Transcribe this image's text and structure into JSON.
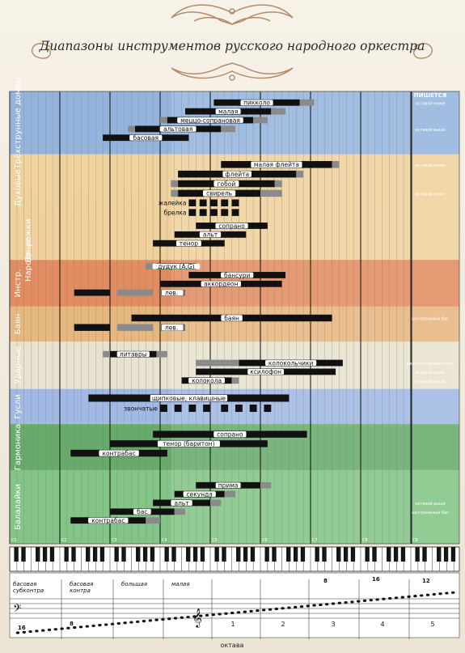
{
  "title": "Диапазоны инструментов русского народного оркестра",
  "header_right": "ПИШЕТСЯ",
  "octave_axis_label": "октава",
  "c_labels": [
    "C1",
    "C2",
    "C3",
    "C4",
    "C5",
    "C6",
    "C7",
    "C8",
    "C9"
  ],
  "octave_names": [
    "басовая субконтра",
    "басовая контра",
    "большая",
    "малая"
  ],
  "octave_numbers": [
    "1",
    "2",
    "3",
    "4",
    "5"
  ],
  "octave_marks": [
    "16",
    "8",
    "8",
    "16",
    "12"
  ],
  "colors": {
    "domry": "#8fb0dc",
    "dukhovye": "#efd098",
    "instr": "#e0875a",
    "bayan": "#e6b47a",
    "udarnye": "#e8e2cc",
    "gusli": "#9cb6e4",
    "garmonika": "#5fa865",
    "balalaiki": "#7cc382"
  },
  "chart_data": {
    "type": "range",
    "x_unit": "white-key index from C1 (0 = C1, 7 = C2, ..., 56 = C9)",
    "xlim": [
      0,
      56
    ],
    "groups": [
      {
        "name": "Трёхструнные домры",
        "color": "domry",
        "rows": [
          {
            "label": "пикколо",
            "core": [
              28.5,
              40.5
            ],
            "ext": [
              40.5,
              42.5
            ],
            "pre": [],
            "written": "октавой ниже"
          },
          {
            "label": "малая",
            "core": [
              24.5,
              36.5
            ],
            "ext": [
              36.5,
              38.5
            ],
            "pre": []
          },
          {
            "label": "меццо-сопрановая",
            "core": [
              22,
              34
            ],
            "ext": [
              34,
              36
            ],
            "pre": [
              [
                21,
                22
              ]
            ]
          },
          {
            "label": "альтовая",
            "core": [
              17.5,
              29.5
            ],
            "ext": [
              29.5,
              31.5
            ],
            "pre": [
              [
                16.5,
                17.5
              ]
            ],
            "written": "октавой выше"
          },
          {
            "label": "басовая",
            "core": [
              13,
              25
            ],
            "ext": [],
            "pre": []
          }
        ]
      },
      {
        "name": "Духовые",
        "color": "dukhovye",
        "rows": [
          {
            "label": "малая флейта",
            "core": [
              29.5,
              45
            ],
            "ext": [
              45,
              46
            ],
            "pre": [],
            "written": "октавой ниже"
          },
          {
            "label": "флейта",
            "core": [
              23.5,
              40
            ],
            "ext": [
              40,
              41
            ],
            "pre": []
          },
          {
            "label": "гобой",
            "core": [
              23.5,
              37
            ],
            "ext": [
              37,
              38
            ],
            "pre": [
              [
                22.5,
                23.5
              ]
            ]
          },
          {
            "label": "свирель",
            "core": [
              23.5,
              35
            ],
            "ext": [
              35,
              38
            ],
            "pre": [
              [
                22.5,
                23.5
              ]
            ],
            "written": "октавой ниже"
          },
          {
            "label": "жалейка",
            "blocks": [
              [
                25,
                26
              ],
              [
                26.5,
                27.5
              ],
              [
                28,
                29
              ],
              [
                29.5,
                30.5
              ],
              [
                31,
                32
              ]
            ]
          },
          {
            "label": "брелка",
            "blocks": [
              [
                25,
                26
              ],
              [
                26.5,
                27.5
              ],
              [
                28,
                29
              ],
              [
                29.5,
                30.5
              ],
              [
                31,
                32
              ]
            ]
          }
        ]
      },
      {
        "name": "Вл. рожки",
        "color": "dukhovye",
        "rows": [
          {
            "label": "сопрано",
            "core": [
              26,
              36
            ],
            "ext": [],
            "pre": []
          },
          {
            "label": "альт",
            "core": [
              23,
              33
            ],
            "ext": [],
            "pre": []
          },
          {
            "label": "тенор",
            "core": [
              20,
              30
            ],
            "ext": [],
            "pre": []
          }
        ]
      },
      {
        "name": "Народные",
        "color": "dukhovye",
        "rows": []
      },
      {
        "name": "Инстр.",
        "color": "instr",
        "rows": [
          {
            "label": "дудук (A,G)",
            "core": [
              20.5,
              26
            ],
            "ext": [],
            "pre": [
              [
                19,
                20.5
              ]
            ]
          },
          {
            "label": "бансури",
            "core": [
              25,
              38.5
            ],
            "ext": [],
            "pre": []
          },
          {
            "label": "аккордеон",
            "core": [
              21,
              38
            ],
            "ext": [],
            "pre": []
          },
          {
            "label": "лев.",
            "core": [
              9,
              14
            ],
            "ext": [
              15,
              20
            ],
            "ext2": [
              21,
              24.5
            ],
            "pre": []
          }
        ]
      },
      {
        "name": "Баян",
        "color": "bayan",
        "rows": [
          {
            "label": "баян",
            "core": [
              17,
              45
            ],
            "ext": [],
            "pre": [],
            "written": "центральный бас"
          },
          {
            "label": "лев.",
            "core": [
              9,
              14
            ],
            "ext": [
              15,
              20
            ],
            "ext2": [
              21,
              24.5
            ],
            "pre": []
          }
        ]
      },
      {
        "name": "Ударные",
        "color": "udarnye",
        "rows": [
          {
            "label": "литавры",
            "core": [
              14,
              20.5
            ],
            "ext": [
              20.5,
              22
            ],
            "pre": [
              [
                13,
                14
              ]
            ]
          },
          {
            "label": "колокольчики",
            "core": [
              32,
              46.5
            ],
            "ext": [],
            "pre": [
              [
                26,
                32
              ]
            ],
            "written": "двумя октавами ниже"
          },
          {
            "label": "ксилофон",
            "core": [
              26,
              45.5
            ],
            "ext": [],
            "pre": [],
            "written": "октавой ниже"
          },
          {
            "label": "колокола",
            "core": [
              24,
              31
            ],
            "ext": [
              31,
              32
            ],
            "pre": [],
            "written": "октавой выше"
          }
        ]
      },
      {
        "name": "Гусли",
        "color": "gusli",
        "rows": [
          {
            "label": "щипковые, клавишные",
            "core": [
              11,
              39
            ],
            "ext": [],
            "pre": []
          },
          {
            "label": "звончатые",
            "blocks": [
              [
                21,
                22
              ],
              [
                23,
                24
              ],
              [
                25,
                26
              ],
              [
                27,
                28
              ],
              [
                29.5,
                30.5
              ],
              [
                31.5,
                32.5
              ],
              [
                33.5,
                34.5
              ],
              [
                35.5,
                36.5
              ]
            ]
          }
        ]
      },
      {
        "name": "Гармоника",
        "color": "garmonika",
        "rows": [
          {
            "label": "сопрано",
            "core": [
              20,
              41.5
            ],
            "ext": [],
            "pre": []
          },
          {
            "label": "тенор (баритон)",
            "core": [
              14,
              36
            ],
            "ext": [],
            "pre": []
          },
          {
            "label": "контрабас",
            "core": [
              8.5,
              22
            ],
            "ext": [],
            "pre": []
          }
        ]
      },
      {
        "name": "Балалайки",
        "color": "balalaiki",
        "rows": [
          {
            "label": "прима",
            "core": [
              26,
              35
            ],
            "ext": [
              35,
              36.5
            ],
            "pre": []
          },
          {
            "label": "секунда",
            "core": [
              23,
              30
            ],
            "ext": [
              30,
              31.5
            ],
            "pre": []
          },
          {
            "label": "альт",
            "core": [
              20,
              28
            ],
            "ext": [
              28,
              29.5
            ],
            "pre": [],
            "written": "октавой выше"
          },
          {
            "label": "бас",
            "core": [
              14,
              23
            ],
            "ext": [
              23,
              24.5
            ],
            "pre": [],
            "written": "центральный бас"
          },
          {
            "label": "контрабас",
            "core": [
              8.5,
              19
            ],
            "ext": [
              19,
              21
            ],
            "pre": []
          }
        ]
      }
    ]
  }
}
